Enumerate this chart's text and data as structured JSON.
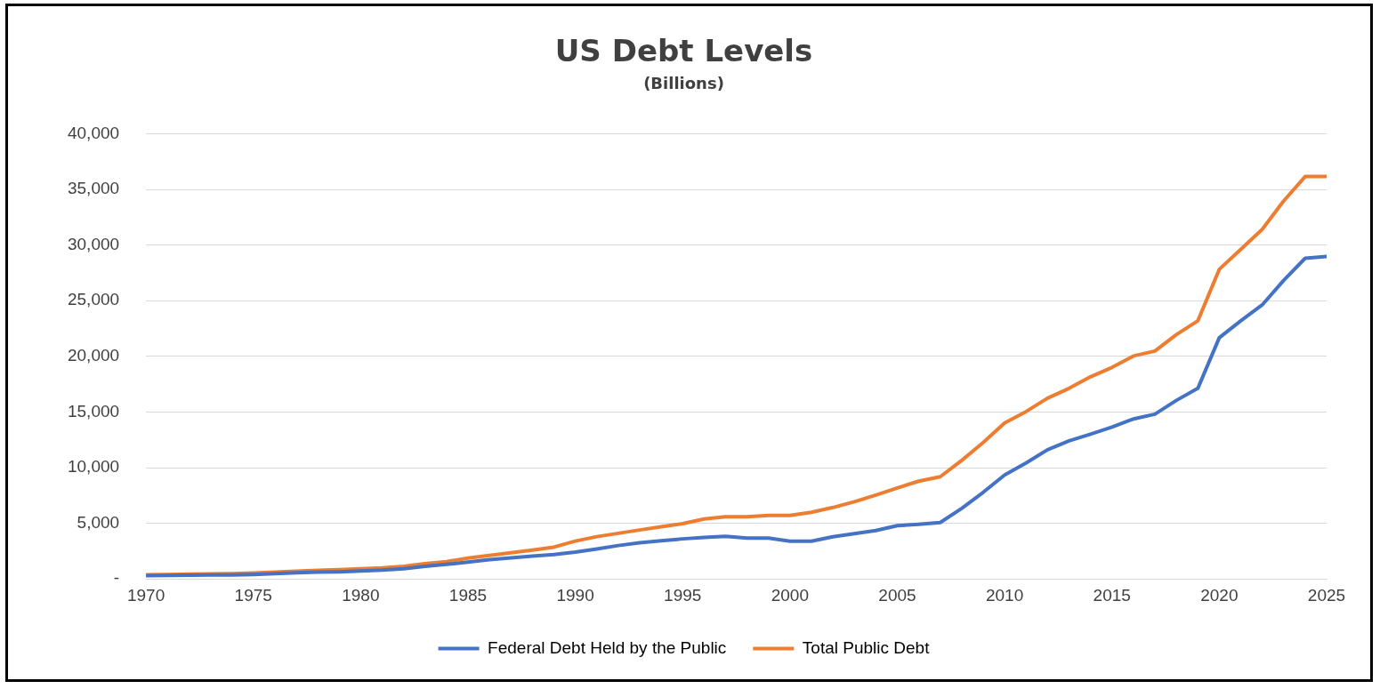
{
  "chart_data": {
    "type": "line",
    "title": "US Debt Levels",
    "subtitle": "(Billions)",
    "x": [
      1970,
      1971,
      1972,
      1973,
      1974,
      1975,
      1976,
      1977,
      1978,
      1979,
      1980,
      1981,
      1982,
      1983,
      1984,
      1985,
      1986,
      1987,
      1988,
      1989,
      1990,
      1991,
      1992,
      1993,
      1994,
      1995,
      1996,
      1997,
      1998,
      1999,
      2000,
      2001,
      2002,
      2003,
      2004,
      2005,
      2006,
      2007,
      2008,
      2009,
      2010,
      2011,
      2012,
      2013,
      2014,
      2015,
      2016,
      2017,
      2018,
      2019,
      2020,
      2021,
      2022,
      2023,
      2024,
      2025
    ],
    "series": [
      {
        "name": "Federal Debt Held by the Public",
        "color": "#4472c4",
        "values": [
          300,
          320,
          340,
          350,
          350,
          400,
          480,
          550,
          610,
          640,
          710,
          790,
          920,
          1140,
          1310,
          1510,
          1740,
          1890,
          2050,
          2190,
          2410,
          2690,
          3000,
          3250,
          3430,
          3600,
          3730,
          3830,
          3670,
          3670,
          3390,
          3390,
          3790,
          4070,
          4350,
          4790,
          4910,
          5070,
          6340,
          7780,
          9340,
          10420,
          11610,
          12410,
          13010,
          13650,
          14370,
          14800,
          16040,
          17120,
          21670,
          23190,
          24620,
          26820,
          28810,
          28970
        ]
      },
      {
        "name": "Total Public Debt",
        "color": "#ed7d31",
        "values": [
          370,
          400,
          430,
          460,
          480,
          530,
          620,
          700,
          770,
          830,
          910,
          1000,
          1140,
          1370,
          1560,
          1870,
          2120,
          2350,
          2600,
          2860,
          3400,
          3800,
          4100,
          4400,
          4690,
          4970,
          5390,
          5590,
          5590,
          5710,
          5710,
          5990,
          6420,
          6940,
          7540,
          8180,
          8780,
          9180,
          10650,
          12250,
          14010,
          15040,
          16240,
          17120,
          18160,
          19000,
          20030,
          20470,
          21950,
          23190,
          27820,
          29610,
          31410,
          33960,
          36150,
          36150
        ]
      }
    ],
    "xlim": [
      1970,
      2025
    ],
    "xticks": [
      1970,
      1975,
      1980,
      1985,
      1990,
      1995,
      2000,
      2005,
      2010,
      2015,
      2020,
      2025
    ],
    "ylim": [
      0,
      40000
    ],
    "yticks": [
      {
        "value": 0,
        "label": "-"
      },
      {
        "value": 5000,
        "label": "5,000"
      },
      {
        "value": 10000,
        "label": "10,000"
      },
      {
        "value": 15000,
        "label": "15,000"
      },
      {
        "value": 20000,
        "label": "20,000"
      },
      {
        "value": 25000,
        "label": "25,000"
      },
      {
        "value": 30000,
        "label": "30,000"
      },
      {
        "value": 35000,
        "label": "35,000"
      },
      {
        "value": 40000,
        "label": "40,000"
      }
    ],
    "grid": "y",
    "legend": "bottom",
    "marker": "none",
    "line_style": "solid"
  }
}
